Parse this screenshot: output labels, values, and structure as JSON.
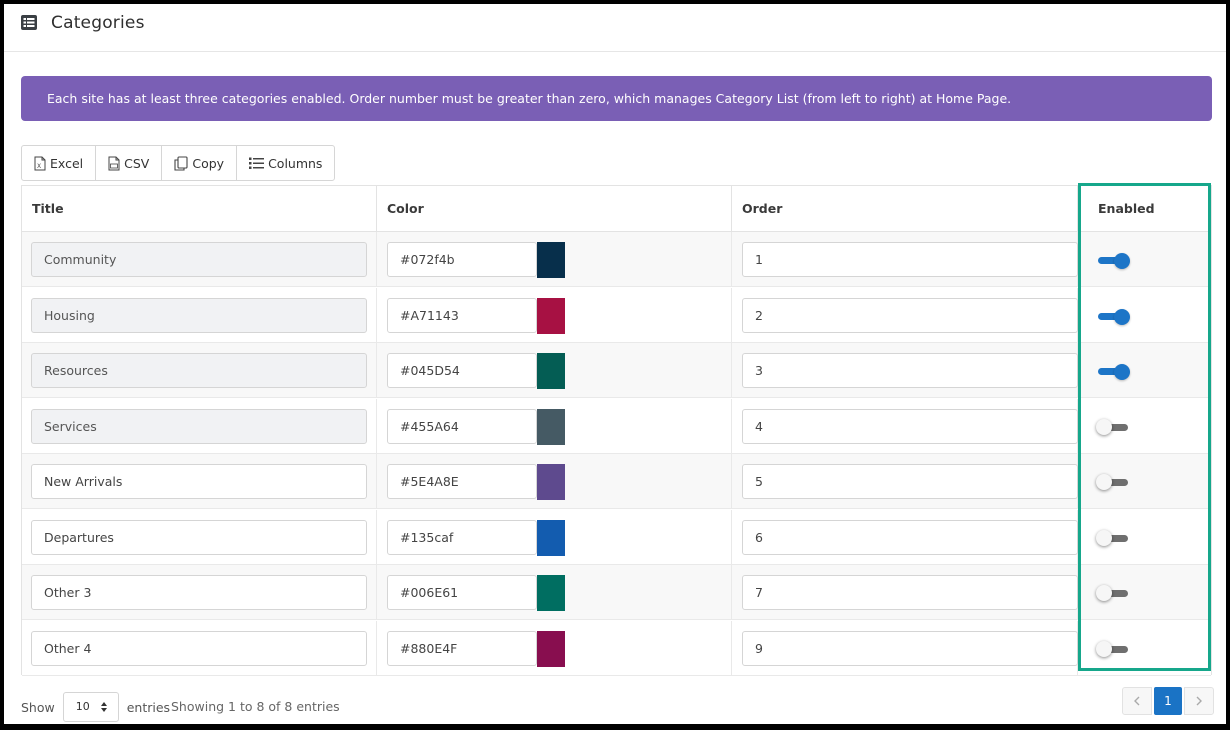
{
  "header": {
    "title": "Categories",
    "icon": "list-table-icon"
  },
  "alert": {
    "text": "Each site has at least three categories enabled. Order number must be greater than zero, which manages Category List (from left to right) at Home Page."
  },
  "toolbar": {
    "excel": "Excel",
    "csv": "CSV",
    "copy": "Copy",
    "columns": "Columns"
  },
  "table": {
    "headers": {
      "title": "Title",
      "color": "Color",
      "order": "Order",
      "enabled": "Enabled"
    },
    "rows": [
      {
        "title": "Community",
        "color": "#072f4b",
        "swatch": "#072f4b",
        "order": "1",
        "enabled": true,
        "locked": true
      },
      {
        "title": "Housing",
        "color": "#A71143",
        "swatch": "#A71143",
        "order": "2",
        "enabled": true,
        "locked": true
      },
      {
        "title": "Resources",
        "color": "#045D54",
        "swatch": "#045D54",
        "order": "3",
        "enabled": true,
        "locked": true
      },
      {
        "title": "Services",
        "color": "#455A64",
        "swatch": "#455A64",
        "order": "4",
        "enabled": false,
        "locked": true
      },
      {
        "title": "New Arrivals",
        "color": "#5E4A8E",
        "swatch": "#5E4A8E",
        "order": "5",
        "enabled": false,
        "locked": false
      },
      {
        "title": "Departures",
        "color": "#135caf",
        "swatch": "#135caf",
        "order": "6",
        "enabled": false,
        "locked": false
      },
      {
        "title": "Other 3",
        "color": "#006E61",
        "swatch": "#006E61",
        "order": "7",
        "enabled": false,
        "locked": false
      },
      {
        "title": "Other 4",
        "color": "#880E4F",
        "swatch": "#880E4F",
        "order": "9",
        "enabled": false,
        "locked": false
      }
    ]
  },
  "footer": {
    "show_label": "Show",
    "page_size": "10",
    "entries_label": "entries",
    "info": "Showing 1 to 8 of 8 entries",
    "current_page": "1"
  },
  "colors": {
    "accent": "#7a5fb5",
    "primary": "#1a73c5",
    "highlight": "#16a78b"
  }
}
